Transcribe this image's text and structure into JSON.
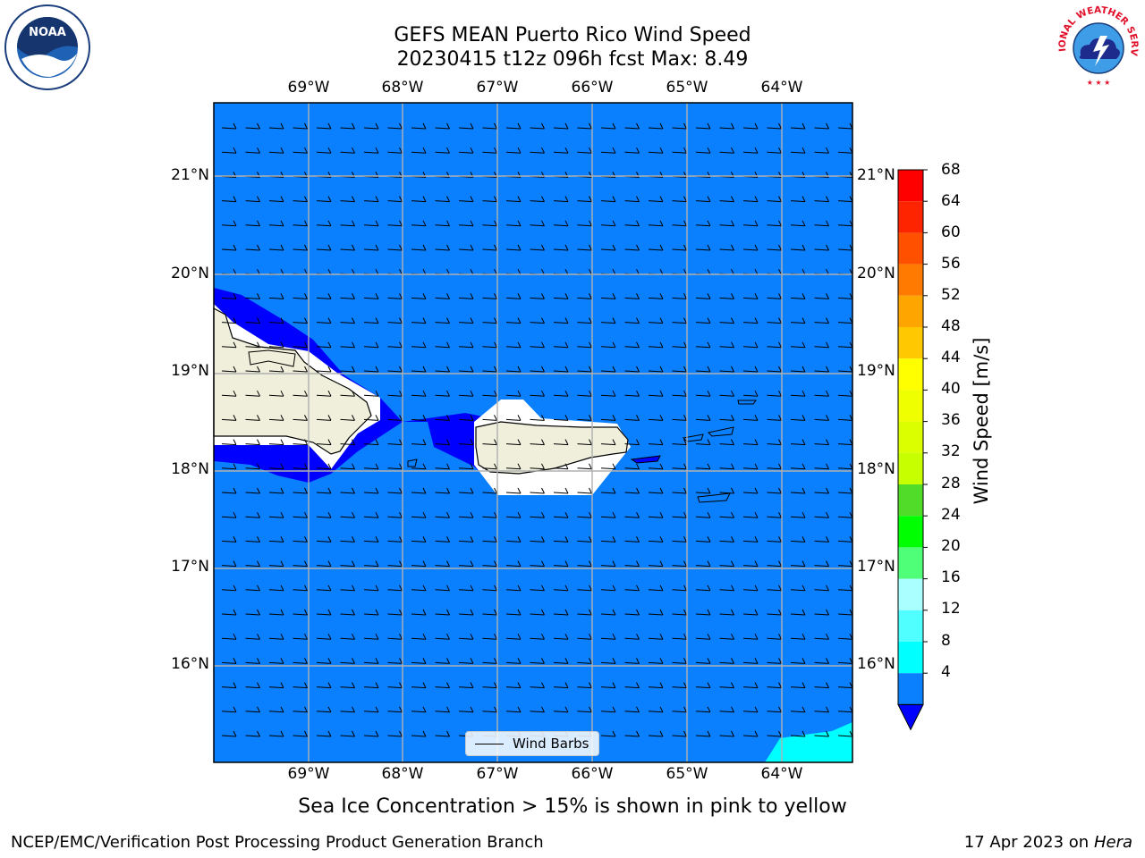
{
  "title_line1": "GEFS MEAN Puerto Rico Wind Speed",
  "title_line2": "20230415 t12z 096h fcst   Max: 8.49",
  "logos": {
    "left": {
      "text": "NOAA",
      "icon": "noaa-logo-icon"
    },
    "right": {
      "text": "NATIONAL WEATHER SERVICE",
      "icon": "nws-logo-icon"
    }
  },
  "map": {
    "lon_ticks": [
      "69°W",
      "68°W",
      "67°W",
      "66°W",
      "65°W",
      "64°W"
    ],
    "lat_ticks": [
      "21°N",
      "20°N",
      "19°N",
      "18°N",
      "17°N",
      "16°N"
    ],
    "ocean_color": "#0a80ff",
    "land_color": "#efefdb",
    "low_wind_color": "#0000ff",
    "high_wind_color": "#00ffff",
    "legend_label": "Wind Barbs"
  },
  "colorbar": {
    "label": "Wind Speed [m/s]",
    "ticks": [
      "68",
      "64",
      "60",
      "56",
      "52",
      "48",
      "44",
      "40",
      "36",
      "32",
      "28",
      "24",
      "20",
      "16",
      "12",
      "8",
      "4"
    ],
    "colors": [
      "#ff0000",
      "#ff2400",
      "#ff5000",
      "#ff7a00",
      "#ffa500",
      "#ffc800",
      "#ffff00",
      "#f0ff00",
      "#dcff00",
      "#c8ff00",
      "#50dc28",
      "#00ff00",
      "#50ff78",
      "#aaffff",
      "#50ffff",
      "#00ffff",
      "#0a80ff"
    ],
    "under_color": "#0000ff"
  },
  "subtitle": "Sea Ice Concentration > 15% is shown in pink to yellow",
  "footer_left": "NCEP/EMC/Verification Post Processing Product Generation Branch",
  "footer_right_text": "17 Apr 2023 on",
  "footer_right_italic": "Hera"
}
